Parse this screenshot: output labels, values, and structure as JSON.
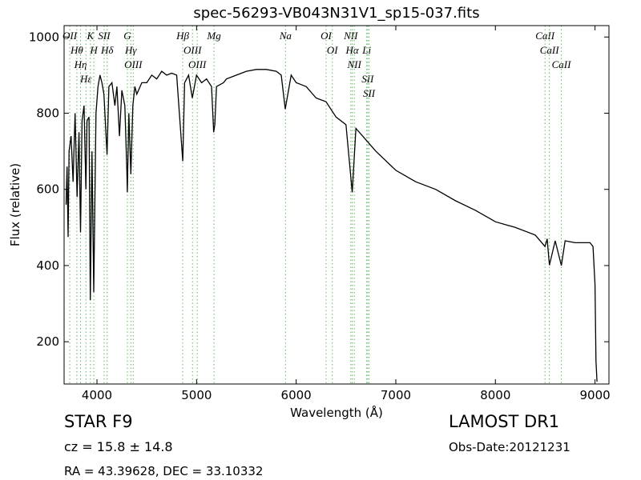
{
  "chart_data": {
    "type": "line",
    "title": "spec-56293-VB043N31V1_sp15-037.fits",
    "xlabel": "Wavelength (Å)",
    "ylabel": "Flux (relative)",
    "xlim": [
      3670,
      9140
    ],
    "ylim": [
      89,
      1030
    ],
    "xticks": [
      4000,
      5000,
      6000,
      7000,
      8000,
      9000
    ],
    "yticks": [
      200,
      400,
      600,
      800,
      1000
    ],
    "color": "#000000",
    "x": [
      3690,
      3700,
      3710,
      3720,
      3740,
      3760,
      3780,
      3800,
      3820,
      3835,
      3850,
      3870,
      3889,
      3900,
      3920,
      3933,
      3950,
      3968,
      3990,
      4010,
      4030,
      4050,
      4070,
      4101,
      4120,
      4150,
      4180,
      4200,
      4226,
      4250,
      4280,
      4300,
      4305,
      4320,
      4340,
      4360,
      4380,
      4400,
      4450,
      4500,
      4550,
      4600,
      4650,
      4700,
      4750,
      4800,
      4861,
      4880,
      4920,
      4957,
      5000,
      5050,
      5100,
      5150,
      5172,
      5183,
      5200,
      5270,
      5300,
      5400,
      5500,
      5600,
      5700,
      5800,
      5850,
      5890,
      5950,
      6000,
      6100,
      6200,
      6300,
      6400,
      6500,
      6563,
      6600,
      6700,
      6800,
      7000,
      7200,
      7400,
      7600,
      7800,
      8000,
      8200,
      8400,
      8498,
      8520,
      8542,
      8600,
      8662,
      8700,
      8800,
      8950,
      8980,
      9000,
      9010,
      9020
    ],
    "values": [
      560,
      660,
      475,
      700,
      740,
      620,
      800,
      580,
      750,
      487,
      780,
      820,
      600,
      780,
      790,
      309,
      700,
      330,
      800,
      870,
      900,
      880,
      850,
      691,
      870,
      880,
      820,
      870,
      740,
      860,
      820,
      650,
      592,
      800,
      640,
      820,
      870,
      850,
      880,
      880,
      900,
      890,
      910,
      900,
      905,
      900,
      674,
      880,
      900,
      840,
      900,
      880,
      890,
      870,
      750,
      770,
      870,
      880,
      890,
      900,
      910,
      915,
      915,
      910,
      900,
      811,
      900,
      880,
      870,
      840,
      830,
      790,
      770,
      592,
      760,
      730,
      700,
      650,
      620,
      600,
      570,
      545,
      515,
      500,
      480,
      450,
      470,
      401,
      465,
      400,
      465,
      460,
      460,
      450,
      350,
      150,
      95
    ],
    "lines": {
      "color": "#5cb85c",
      "items": [
        {
          "label": "OII",
          "wavelength": 3727
        },
        {
          "label": "Hθ",
          "wavelength": 3798
        },
        {
          "label": "Hη",
          "wavelength": 3835
        },
        {
          "label": "Hε",
          "wavelength": 3889
        },
        {
          "label": "K",
          "wavelength": 3934
        },
        {
          "label": "H",
          "wavelength": 3968
        },
        {
          "label": "SII",
          "wavelength": 4072
        },
        {
          "label": "Hδ",
          "wavelength": 4102
        },
        {
          "label": "G",
          "wavelength": 4305
        },
        {
          "label": "Hγ",
          "wavelength": 4340
        },
        {
          "label": "OIII",
          "wavelength": 4364
        },
        {
          "label": "Hβ",
          "wavelength": 4861
        },
        {
          "label": "OIII",
          "wavelength": 4959
        },
        {
          "label": "OIII",
          "wavelength": 5007
        },
        {
          "label": "Mg",
          "wavelength": 5175
        },
        {
          "label": "Na",
          "wavelength": 5893
        },
        {
          "label": "OI",
          "wavelength": 6300
        },
        {
          "label": "OI",
          "wavelength": 6363
        },
        {
          "label": "NII",
          "wavelength": 6548
        },
        {
          "label": "Hα",
          "wavelength": 6563
        },
        {
          "label": "NII",
          "wavelength": 6583
        },
        {
          "label": "Li",
          "wavelength": 6708
        },
        {
          "label": "SII",
          "wavelength": 6717
        },
        {
          "label": "SII",
          "wavelength": 6731
        },
        {
          "label": "CaII",
          "wavelength": 8498
        },
        {
          "label": "CaII",
          "wavelength": 8542
        },
        {
          "label": "CaII",
          "wavelength": 8662
        }
      ]
    },
    "info_left": [
      "STAR   F9",
      "cz = 15.8 ± 14.8",
      "RA = 43.39628, DEC = 33.10332"
    ],
    "info_right": [
      "LAMOST DR1",
      "Obs-Date:20121231"
    ]
  }
}
